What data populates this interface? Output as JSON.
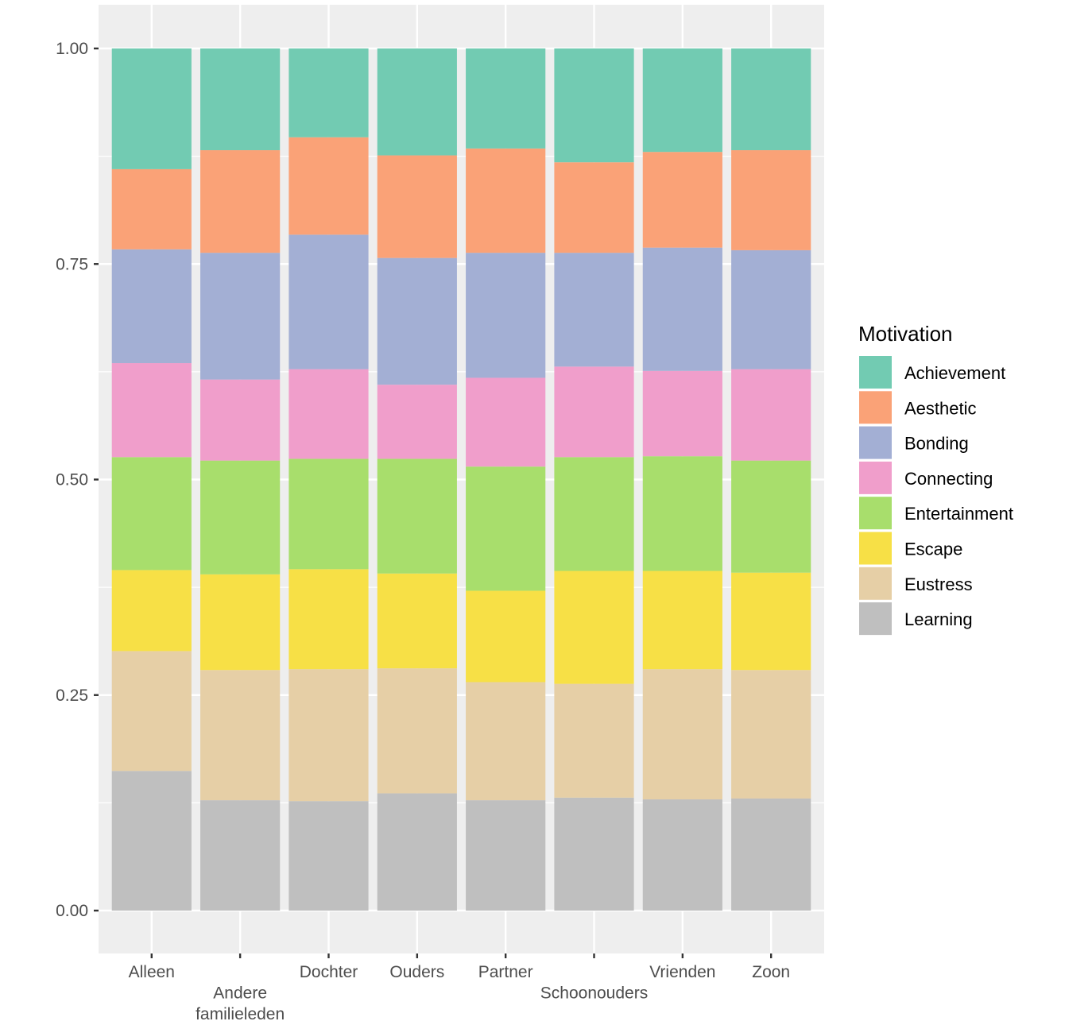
{
  "chart_data": {
    "type": "bar",
    "stacked": "fill",
    "title": "",
    "xlabel": "",
    "ylabel": "",
    "ylim": [
      0,
      1
    ],
    "yticks": [
      "0.00",
      "0.25",
      "0.50",
      "0.75",
      "1.00"
    ],
    "ytick_values": [
      0,
      0.25,
      0.5,
      0.75,
      1.0
    ],
    "grid": true,
    "categories": [
      "Alleen",
      "Andere familieleden",
      "Dochter",
      "Ouders",
      "Partner",
      "Schoonouders",
      "Vrienden",
      "Zoon"
    ],
    "legend": {
      "title": "Motivation",
      "position": "right"
    },
    "series": [
      {
        "name": "Achievement",
        "color": "#72CBB2",
        "values": [
          0.14,
          0.118,
          0.103,
          0.124,
          0.116,
          0.132,
          0.12,
          0.118
        ]
      },
      {
        "name": "Aesthetic",
        "color": "#FAA277",
        "values": [
          0.093,
          0.119,
          0.113,
          0.119,
          0.121,
          0.105,
          0.111,
          0.116
        ]
      },
      {
        "name": "Bonding",
        "color": "#A3AFD4",
        "values": [
          0.132,
          0.147,
          0.156,
          0.147,
          0.145,
          0.132,
          0.143,
          0.138
        ]
      },
      {
        "name": "Connecting",
        "color": "#F09ECB",
        "values": [
          0.109,
          0.094,
          0.104,
          0.086,
          0.103,
          0.105,
          0.099,
          0.106
        ]
      },
      {
        "name": "Entertainment",
        "color": "#A8DE6C",
        "values": [
          0.131,
          0.132,
          0.128,
          0.133,
          0.144,
          0.132,
          0.133,
          0.13
        ]
      },
      {
        "name": "Escape",
        "color": "#F7E046",
        "values": [
          0.094,
          0.111,
          0.116,
          0.11,
          0.106,
          0.131,
          0.114,
          0.113
        ]
      },
      {
        "name": "Eustress",
        "color": "#E6CFA6",
        "values": [
          0.139,
          0.151,
          0.153,
          0.145,
          0.137,
          0.132,
          0.151,
          0.149
        ]
      },
      {
        "name": "Learning",
        "color": "#BFBFBF",
        "values": [
          0.162,
          0.128,
          0.127,
          0.136,
          0.128,
          0.131,
          0.129,
          0.13
        ]
      }
    ]
  },
  "x_label_lines": [
    [
      "Alleen"
    ],
    [
      "",
      "Andere",
      "familieleden"
    ],
    [
      "Dochter"
    ],
    [
      "Ouders"
    ],
    [
      "Partner"
    ],
    [
      "",
      "Schoonouders"
    ],
    [
      "Vrienden"
    ],
    [
      "Zoon"
    ]
  ]
}
